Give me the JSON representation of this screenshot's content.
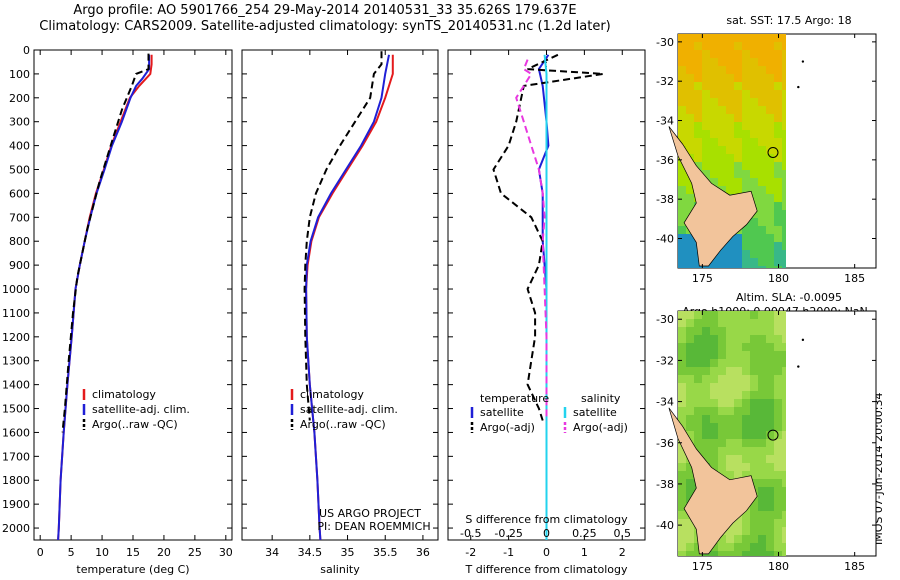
{
  "header": {
    "line1": "Argo profile: AO 5901766_254 29-May-2014 20140531_33 35.626S 179.637E",
    "line2": "Climatology: CARS2009. Satellite-adjusted climatology: synTS_20140531.nc (1.2d later)"
  },
  "credit": {
    "line1": "US ARGO PROJECT",
    "line2": "PI: DEAN ROEMMICH"
  },
  "footer_stamp": "IMOS 07-Jun-2014 20:00:34",
  "colors": {
    "climatology": "#e41a1c",
    "satellite": "#1f1fd6",
    "argo": "#000000",
    "salinity_satellite": "#22d3ee",
    "salinity_argo": "#e838e0"
  },
  "chart_data": [
    {
      "type": "line",
      "xlabel": "temperature (deg C)",
      "ylabel": "",
      "xlim": [
        -1,
        31
      ],
      "ylim": [
        2050,
        0
      ],
      "x_ticks": [
        0,
        5,
        10,
        15,
        20,
        25,
        30
      ],
      "y_ticks": [
        0,
        100,
        200,
        300,
        400,
        500,
        600,
        700,
        800,
        900,
        1000,
        1100,
        1200,
        1300,
        1400,
        1500,
        1600,
        1700,
        1800,
        1900,
        2000
      ],
      "legend": [
        "climatology",
        "satellite-adj. clim.",
        "Argo(..raw -QC)"
      ],
      "legend_position": "bottom-right",
      "series": [
        {
          "name": "climatology",
          "color": "#e41a1c",
          "points": [
            [
              18,
              20
            ],
            [
              18,
              60
            ],
            [
              17.8,
              100
            ],
            [
              16,
              150
            ],
            [
              14.5,
              200
            ],
            [
              13,
              300
            ],
            [
              11.5,
              400
            ],
            [
              10.3,
              500
            ],
            [
              9,
              600
            ],
            [
              8,
              700
            ],
            [
              7.2,
              800
            ],
            [
              6.4,
              900
            ],
            [
              5.7,
              1000
            ],
            [
              5.1,
              1200
            ],
            [
              4.4,
              1400
            ],
            [
              3.8,
              1600
            ],
            [
              3.3,
              1800
            ],
            [
              3,
              2000
            ],
            [
              2.9,
              2050
            ]
          ]
        },
        {
          "name": "satellite-adj. clim.",
          "color": "#1f1fd6",
          "points": [
            [
              17.6,
              20
            ],
            [
              17.6,
              80
            ],
            [
              16.5,
              120
            ],
            [
              15.5,
              150
            ],
            [
              14.6,
              200
            ],
            [
              13.2,
              300
            ],
            [
              11.6,
              400
            ],
            [
              10.4,
              500
            ],
            [
              9.1,
              600
            ],
            [
              8.1,
              700
            ],
            [
              7.2,
              800
            ],
            [
              6.4,
              900
            ],
            [
              5.7,
              1000
            ],
            [
              5.1,
              1200
            ],
            [
              4.4,
              1400
            ],
            [
              3.8,
              1600
            ],
            [
              3.3,
              1800
            ],
            [
              3,
              2000
            ],
            [
              2.9,
              2050
            ]
          ]
        },
        {
          "name": "Argo(..raw -QC)",
          "color": "#000000",
          "dashed": true,
          "points": [
            [
              17.5,
              15
            ],
            [
              17.5,
              80
            ],
            [
              15.5,
              100
            ],
            [
              14.8,
              150
            ],
            [
              13.2,
              250
            ],
            [
              12,
              350
            ],
            [
              10.8,
              450
            ],
            [
              9.6,
              550
            ],
            [
              8.6,
              650
            ],
            [
              7.6,
              750
            ],
            [
              6.8,
              850
            ],
            [
              6,
              950
            ],
            [
              5.3,
              1100
            ],
            [
              4.6,
              1300
            ],
            [
              4,
              1500
            ],
            [
              3.6,
              1600
            ]
          ]
        }
      ]
    },
    {
      "type": "line",
      "xlabel": "salinity",
      "ylabel": "",
      "xlim": [
        33.6,
        36.2
      ],
      "ylim": [
        2050,
        0
      ],
      "x_ticks": [
        34,
        34.5,
        35,
        35.5,
        36
      ],
      "legend": [
        "climatology",
        "satellite-adj. clim.",
        "Argo(..raw -QC)"
      ],
      "legend_position": "bottom-right",
      "series": [
        {
          "name": "climatology",
          "color": "#e41a1c",
          "points": [
            [
              35.6,
              20
            ],
            [
              35.6,
              100
            ],
            [
              35.5,
              200
            ],
            [
              35.38,
              300
            ],
            [
              35.2,
              400
            ],
            [
              35,
              500
            ],
            [
              34.8,
              600
            ],
            [
              34.62,
              700
            ],
            [
              34.52,
              800
            ],
            [
              34.47,
              900
            ],
            [
              34.45,
              1000
            ],
            [
              34.46,
              1200
            ],
            [
              34.5,
              1400
            ],
            [
              34.56,
              1600
            ],
            [
              34.6,
              1800
            ],
            [
              34.63,
              2000
            ],
            [
              34.64,
              2050
            ]
          ]
        },
        {
          "name": "satellite-adj. clim.",
          "color": "#1f1fd6",
          "points": [
            [
              35.55,
              20
            ],
            [
              35.5,
              100
            ],
            [
              35.45,
              200
            ],
            [
              35.35,
              300
            ],
            [
              35.18,
              400
            ],
            [
              34.98,
              500
            ],
            [
              34.78,
              600
            ],
            [
              34.61,
              700
            ],
            [
              34.51,
              800
            ],
            [
              34.46,
              900
            ],
            [
              34.45,
              1000
            ],
            [
              34.46,
              1200
            ],
            [
              34.5,
              1400
            ],
            [
              34.56,
              1600
            ],
            [
              34.6,
              1800
            ],
            [
              34.63,
              2000
            ],
            [
              34.64,
              2050
            ]
          ]
        },
        {
          "name": "Argo(..raw -QC)",
          "color": "#000000",
          "dashed": true,
          "points": [
            [
              35.45,
              5
            ],
            [
              35.45,
              60
            ],
            [
              35.35,
              100
            ],
            [
              35.3,
              200
            ],
            [
              35.1,
              300
            ],
            [
              34.9,
              400
            ],
            [
              34.72,
              500
            ],
            [
              34.58,
              600
            ],
            [
              34.5,
              700
            ],
            [
              34.46,
              800
            ],
            [
              34.44,
              900
            ],
            [
              34.43,
              1000
            ],
            [
              34.44,
              1200
            ],
            [
              34.46,
              1400
            ],
            [
              34.5,
              1550
            ]
          ]
        }
      ]
    },
    {
      "type": "line",
      "xlabel": "T difference from climatology",
      "top_label": "S difference from climatology",
      "xlim": [
        -2.6,
        2.6
      ],
      "ylim": [
        2050,
        0
      ],
      "x_ticks": [
        -2,
        -1,
        0,
        1,
        2
      ],
      "top_ticks": [
        "-0.5",
        "-0.25",
        "0",
        "0.25",
        "0.5"
      ],
      "legend_groups": [
        {
          "title": "temperature",
          "items": [
            "satellite",
            "Argo(-adj)"
          ]
        },
        {
          "title": "salinity",
          "items": [
            "satellite",
            "Argo(-adj)"
          ]
        }
      ],
      "legend_position": "bottom",
      "series": [
        {
          "name": "temperature satellite",
          "color": "#1f1fd6",
          "points": [
            [
              0.05,
              20
            ],
            [
              -0.2,
              80
            ],
            [
              -0.1,
              150
            ],
            [
              0,
              300
            ],
            [
              0.05,
              400
            ],
            [
              -0.2,
              500
            ],
            [
              -0.1,
              600
            ],
            [
              -0.1,
              800
            ],
            [
              0,
              1000
            ],
            [
              0,
              1200
            ],
            [
              0,
              1400
            ],
            [
              0,
              1550
            ]
          ]
        },
        {
          "name": "temperature Argo(-adj)",
          "color": "#000000",
          "dashed": true,
          "points": [
            [
              0.3,
              20
            ],
            [
              -0.5,
              80
            ],
            [
              1.5,
              100
            ],
            [
              -0.6,
              150
            ],
            [
              -0.8,
              300
            ],
            [
              -1.0,
              400
            ],
            [
              -1.4,
              500
            ],
            [
              -1.2,
              600
            ],
            [
              -0.4,
              700
            ],
            [
              -0.1,
              800
            ],
            [
              -0.2,
              900
            ],
            [
              -0.5,
              1000
            ],
            [
              -0.3,
              1100
            ],
            [
              -0.3,
              1200
            ],
            [
              -0.4,
              1300
            ],
            [
              -0.5,
              1400
            ],
            [
              -0.2,
              1500
            ],
            [
              -0.1,
              1550
            ]
          ]
        },
        {
          "name": "salinity satellite",
          "color": "#22d3ee",
          "points": [
            [
              -0.05,
              20
            ],
            [
              0,
              100
            ],
            [
              0,
              200
            ],
            [
              0,
              400
            ],
            [
              0,
              600
            ],
            [
              0,
              800
            ],
            [
              0,
              1000
            ],
            [
              0,
              1200
            ],
            [
              0,
              1400
            ],
            [
              0,
              1600
            ],
            [
              0,
              1800
            ],
            [
              0,
              2000
            ],
            [
              0,
              2050
            ]
          ]
        },
        {
          "name": "salinity Argo(-adj)",
          "color": "#e838e0",
          "dashed": true,
          "points": [
            [
              -0.5,
              40
            ],
            [
              -0.6,
              80
            ],
            [
              -0.4,
              100
            ],
            [
              -0.6,
              150
            ],
            [
              -0.8,
              200
            ],
            [
              -0.6,
              300
            ],
            [
              -0.4,
              400
            ],
            [
              -0.2,
              500
            ],
            [
              -0.1,
              600
            ],
            [
              -0.05,
              700
            ],
            [
              -0.1,
              800
            ],
            [
              -0.05,
              1000
            ],
            [
              0,
              1200
            ],
            [
              0,
              1400
            ],
            [
              0,
              1550
            ]
          ]
        }
      ]
    }
  ],
  "maps": [
    {
      "title": "sat. SST: 17.5 Argo: 18",
      "title2": "",
      "lon_ticks": [
        175,
        180,
        185
      ],
      "lat_ticks": [
        -30,
        -32,
        -34,
        -36,
        -38,
        -40
      ],
      "palette": [
        "#f0b000",
        "#e0c000",
        "#c8d800",
        "#a8e000",
        "#80d840",
        "#50c850",
        "#38b888",
        "#2090c0"
      ]
    },
    {
      "title": "Altim. SLA: -0.0095",
      "title2": "Argo h1000: 0.00047 h2000: NaN",
      "lon_ticks": [
        175,
        180,
        185
      ],
      "lat_ticks": [
        -30,
        -32,
        -34,
        -36,
        -38,
        -40
      ],
      "palette": [
        "#b8e060",
        "#98d848",
        "#78c838",
        "#58b838"
      ]
    }
  ]
}
